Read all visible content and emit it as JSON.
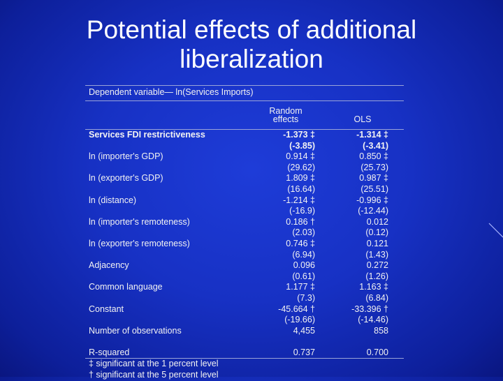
{
  "slide": {
    "title_line1": "Potential effects of additional",
    "title_line2": "liberalization"
  },
  "table": {
    "dependent_variable": "Dependent variable— ln(Services Imports)",
    "header": {
      "col1_line1": "Random",
      "col1_line2": "effects",
      "col2": "OLS"
    },
    "rows": [
      {
        "label": "Services FDI restrictiveness",
        "re": "-1.373 ‡",
        "ols": "-1.314 ‡",
        "bold": true
      },
      {
        "label": "",
        "re": "(-3.85)",
        "ols": "(-3.41)",
        "bold": true
      },
      {
        "label": "ln (importer's GDP)",
        "re": "0.914 ‡",
        "ols": "0.850 ‡"
      },
      {
        "label": "",
        "re": "(29.62)",
        "ols": "(25.73)"
      },
      {
        "label": "ln (exporter's GDP)",
        "re": "1.809 ‡",
        "ols": "0.987 ‡"
      },
      {
        "label": "",
        "re": "(16.64)",
        "ols": "(25.51)"
      },
      {
        "label": "ln (distance)",
        "re": "-1.214 ‡",
        "ols": "-0.996 ‡"
      },
      {
        "label": "",
        "re": "(-16.9)",
        "ols": "(-12.44)"
      },
      {
        "label": "ln (importer's remoteness)",
        "re": "0.186 †",
        "ols": "0.012"
      },
      {
        "label": "",
        "re": "(2.03)",
        "ols": "(0.12)"
      },
      {
        "label": "ln (exporter's remoteness)",
        "re": "0.746 ‡",
        "ols": "0.121"
      },
      {
        "label": "",
        "re": "(6.94)",
        "ols": "(1.43)"
      },
      {
        "label": "Adjacency",
        "re": "0.096",
        "ols": "0.272"
      },
      {
        "label": "",
        "re": "(0.61)",
        "ols": "(1.26)"
      },
      {
        "label": "Common language",
        "re": "1.177 ‡",
        "ols": "1.163 ‡"
      },
      {
        "label": "",
        "re": "(7.3)",
        "ols": "(6.84)"
      },
      {
        "label": "Constant",
        "re": "-45.664 †",
        "ols": "-33.396 †"
      },
      {
        "label": "",
        "re": "(-19.66)",
        "ols": "(-14.46)"
      },
      {
        "label": "Number of observations",
        "re": "4,455",
        "ols": "858"
      }
    ],
    "rsquared": {
      "label": "R-squared",
      "re": "0.737",
      "ols": "0.700"
    },
    "footnotes": [
      "‡ significant at the 1 percent level",
      "† significant at the 5 percent level"
    ]
  },
  "colors": {
    "background": "#1731c4",
    "text": "#ffffff",
    "rule": "#9aa4d8"
  }
}
